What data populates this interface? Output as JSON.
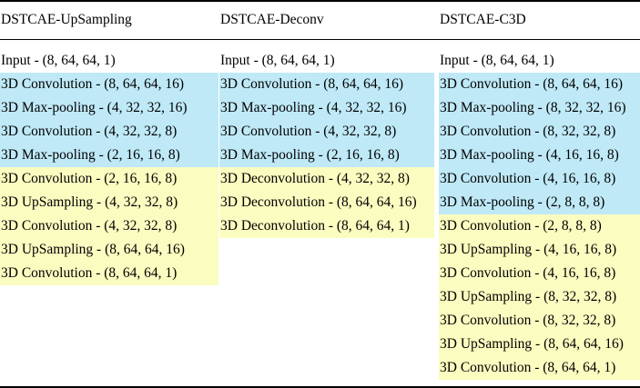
{
  "table": {
    "columns": [
      {
        "header": "DSTCAE-UpSampling",
        "rows": [
          {
            "text": "Input - (8, 64, 64, 1)",
            "kind": "input"
          },
          {
            "text": "3D Convolution - (8, 64, 64, 16)",
            "kind": "encoder"
          },
          {
            "text": "3D Max-pooling - (4, 32, 32, 16)",
            "kind": "encoder"
          },
          {
            "text": "3D Convolution - (4, 32, 32, 8)",
            "kind": "encoder"
          },
          {
            "text": "3D Max-pooling - (2, 16, 16, 8)",
            "kind": "encoder"
          },
          {
            "text": "3D Convolution - (2, 16, 16, 8)",
            "kind": "decoder"
          },
          {
            "text": "3D UpSampling - (4, 32, 32, 8)",
            "kind": "decoder"
          },
          {
            "text": "3D Convolution - (4, 32, 32, 8)",
            "kind": "decoder"
          },
          {
            "text": "3D UpSampling - (8, 64, 64, 16)",
            "kind": "decoder"
          },
          {
            "text": "3D Convolution - (8, 64, 64, 1)",
            "kind": "decoder"
          }
        ]
      },
      {
        "header": "DSTCAE-Deconv",
        "rows": [
          {
            "text": "Input - (8, 64, 64, 1)",
            "kind": "input"
          },
          {
            "text": "3D Convolution - (8, 64, 64, 16)",
            "kind": "encoder"
          },
          {
            "text": "3D Max-pooling - (4, 32, 32, 16)",
            "kind": "encoder"
          },
          {
            "text": "3D Convolution - (4, 32, 32, 8)",
            "kind": "encoder"
          },
          {
            "text": "3D Max-pooling - (2, 16, 16, 8)",
            "kind": "encoder"
          },
          {
            "text": "3D Deconvolution - (4, 32, 32, 8)",
            "kind": "decoder"
          },
          {
            "text": "3D Deconvolution - (8, 64, 64, 16)",
            "kind": "decoder"
          },
          {
            "text": "3D Deconvolution - (8, 64, 64, 1)",
            "kind": "decoder"
          }
        ]
      },
      {
        "header": "DSTCAE-C3D",
        "rows": [
          {
            "text": "Input - (8, 64, 64, 1)",
            "kind": "input"
          },
          {
            "text": "3D Convolution - (8, 64, 64, 16)",
            "kind": "encoder"
          },
          {
            "text": "3D Max-pooling - (8, 32, 32, 16)",
            "kind": "encoder"
          },
          {
            "text": "3D Convolution - (8, 32, 32, 8)",
            "kind": "encoder"
          },
          {
            "text": "3D Max-pooling - (4, 16, 16, 8)",
            "kind": "encoder"
          },
          {
            "text": "3D Convolution - (4, 16, 16, 8)",
            "kind": "encoder"
          },
          {
            "text": "3D Max-pooling - (2, 8, 8, 8)",
            "kind": "encoder"
          },
          {
            "text": "3D Convolution - (2, 8, 8, 8)",
            "kind": "decoder"
          },
          {
            "text": "3D UpSampling - (4, 16, 16, 8)",
            "kind": "decoder"
          },
          {
            "text": "3D Convolution - (4, 16, 16, 8)",
            "kind": "decoder"
          },
          {
            "text": "3D UpSampling - (8, 32, 32, 8)",
            "kind": "decoder"
          },
          {
            "text": "3D Convolution - (8, 32, 32, 8)",
            "kind": "decoder"
          },
          {
            "text": "3D UpSampling - (8, 64, 64, 16)",
            "kind": "decoder"
          },
          {
            "text": "3D Convolution - (8, 64, 64, 1)",
            "kind": "decoder"
          }
        ]
      }
    ]
  },
  "colors": {
    "encoder": "#bfe9f7",
    "decoder": "#fbfcc0",
    "rule": "#000000"
  }
}
